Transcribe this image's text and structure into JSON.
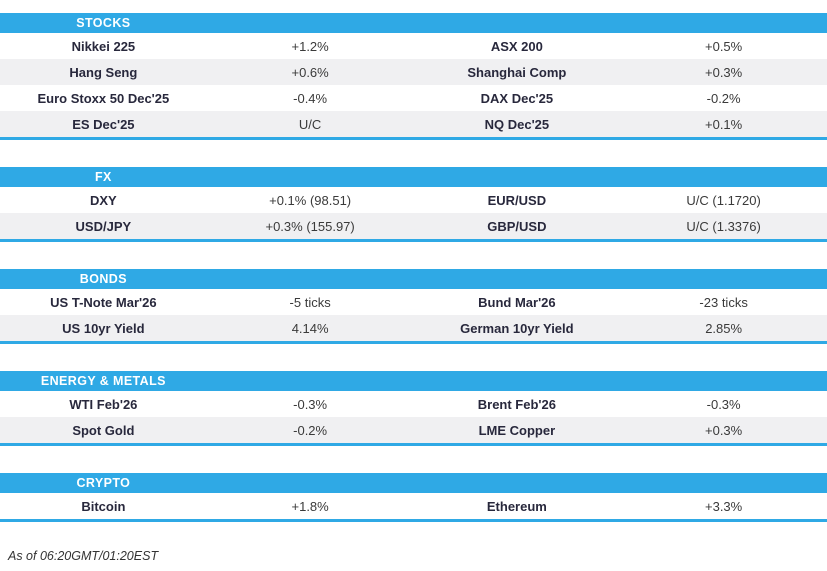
{
  "colors": {
    "accent_blue": "#2fa9e5",
    "row_alt_bg": "#f0f0f2",
    "label_text": "#28283c",
    "value_text": "#3a3a3a",
    "header_text": "#ffffff"
  },
  "sections": [
    {
      "title": "STOCKS",
      "rows": [
        [
          {
            "label": "Nikkei 225",
            "value": "+1.2%"
          },
          {
            "label": "ASX 200",
            "value": "+0.5%"
          }
        ],
        [
          {
            "label": "Hang Seng",
            "value": "+0.6%"
          },
          {
            "label": "Shanghai Comp",
            "value": "+0.3%"
          }
        ],
        [
          {
            "label": "Euro Stoxx 50 Dec'25",
            "value": "-0.4%"
          },
          {
            "label": "DAX Dec'25",
            "value": "-0.2%"
          }
        ],
        [
          {
            "label": "ES Dec'25",
            "value": "U/C"
          },
          {
            "label": "NQ Dec'25",
            "value": "+0.1%"
          }
        ]
      ]
    },
    {
      "title": "FX",
      "rows": [
        [
          {
            "label": "DXY",
            "value": "+0.1% (98.51)"
          },
          {
            "label": "EUR/USD",
            "value": "U/C (1.1720)"
          }
        ],
        [
          {
            "label": "USD/JPY",
            "value": "+0.3% (155.97)"
          },
          {
            "label": "GBP/USD",
            "value": "U/C (1.3376)"
          }
        ]
      ]
    },
    {
      "title": "BONDS",
      "rows": [
        [
          {
            "label": "US T-Note Mar'26",
            "value": "-5 ticks"
          },
          {
            "label": "Bund Mar'26",
            "value": "-23 ticks"
          }
        ],
        [
          {
            "label": "US 10yr Yield",
            "value": "4.14%"
          },
          {
            "label": "German 10yr Yield",
            "value": "2.85%"
          }
        ]
      ]
    },
    {
      "title": "ENERGY & METALS",
      "rows": [
        [
          {
            "label": "WTI Feb'26",
            "value": "-0.3%"
          },
          {
            "label": "Brent Feb'26",
            "value": "-0.3%"
          }
        ],
        [
          {
            "label": "Spot Gold",
            "value": "-0.2%"
          },
          {
            "label": "LME Copper",
            "value": "+0.3%"
          }
        ]
      ]
    },
    {
      "title": "CRYPTO",
      "rows": [
        [
          {
            "label": "Bitcoin",
            "value": "+1.8%"
          },
          {
            "label": "Ethereum",
            "value": "+3.3%"
          }
        ]
      ]
    }
  ],
  "footer": {
    "as_of": "As of 06:20GMT/01:20EST"
  }
}
